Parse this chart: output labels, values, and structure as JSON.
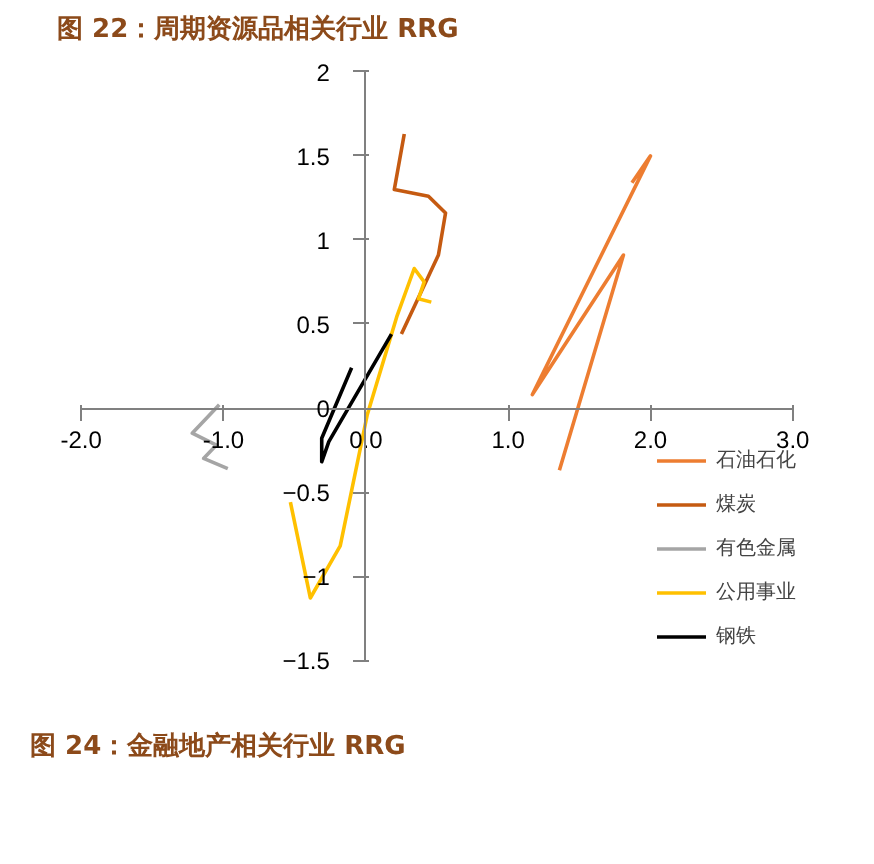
{
  "chart_data": {
    "type": "line",
    "title": "图 22：周期资源品相关行业 RRG",
    "xlim": [
      -2,
      3
    ],
    "ylim": [
      -1.5,
      2
    ],
    "xticks": [
      {
        "value": -2,
        "label": "-2.0"
      },
      {
        "value": -1,
        "label": "-1.0"
      },
      {
        "value": 0,
        "label": "0.0"
      },
      {
        "value": 1,
        "label": "1.0"
      },
      {
        "value": 2,
        "label": "2.0"
      },
      {
        "value": 3,
        "label": "3.0"
      }
    ],
    "yticks": [
      -1.5,
      -1,
      -0.5,
      0,
      0.5,
      1,
      1.5,
      2
    ],
    "series": [
      {
        "name": "石油石化",
        "color": "#ed7d31",
        "x": [
          1.87,
          2.0,
          1.17,
          1.81,
          1.36
        ],
        "values": [
          1.34,
          1.5,
          0.08,
          0.91,
          -0.37
        ]
      },
      {
        "name": "煤炭",
        "color": "#c55a11",
        "x": [
          0.27,
          0.2,
          0.44,
          0.56,
          0.51,
          0.25
        ],
        "values": [
          1.63,
          1.3,
          1.26,
          1.16,
          0.91,
          0.44
        ]
      },
      {
        "name": "有色金属",
        "color": "#a5a5a5",
        "x": [
          -0.97,
          -1.14,
          -1.05,
          -1.22,
          -1.03
        ],
        "values": [
          -0.36,
          -0.3,
          -0.22,
          -0.15,
          0.02
        ]
      },
      {
        "name": "公用事业",
        "color": "#ffc000",
        "x": [
          -0.53,
          -0.39,
          -0.18,
          0.01,
          0.22,
          0.34,
          0.41,
          0.37,
          0.46
        ],
        "values": [
          -0.56,
          -1.13,
          -0.82,
          -0.04,
          0.55,
          0.83,
          0.75,
          0.65,
          0.63
        ]
      },
      {
        "name": "钢铁",
        "color": "#000000",
        "x": [
          -0.1,
          -0.31,
          -0.31,
          -0.26,
          0.18
        ],
        "values": [
          0.24,
          -0.18,
          -0.32,
          -0.2,
          0.44
        ]
      }
    ],
    "grid": false,
    "legend": "bottom right",
    "annotations": [
      "图 24：金融地产相关行业 RRG"
    ]
  }
}
